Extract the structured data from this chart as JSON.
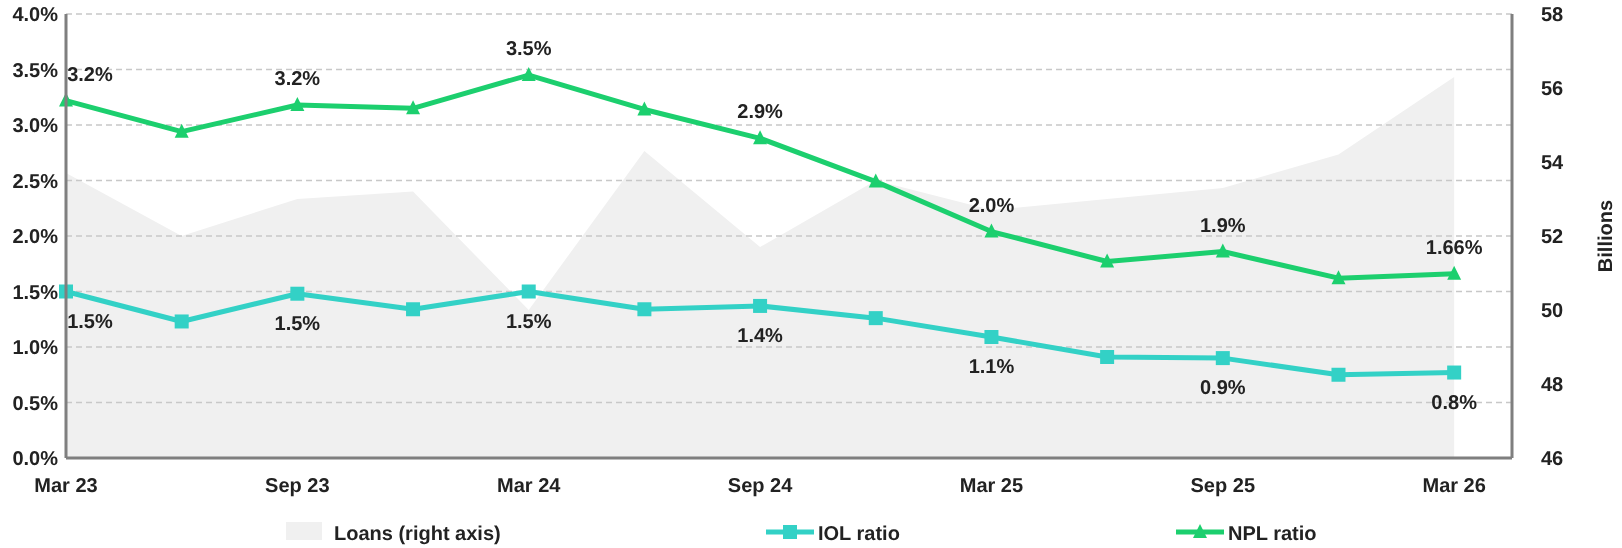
{
  "chart_data": {
    "type": "line",
    "categories": [
      "Mar 23",
      null,
      "Sep 23",
      null,
      "Mar 24",
      null,
      "Sep 24",
      null,
      "Mar 25",
      null,
      "Sep 25",
      null,
      "Mar 26"
    ],
    "series": [
      {
        "name": "Loans (right axis)",
        "type": "area",
        "axis": "y2",
        "color": "#f0f0f0",
        "values": [
          53.7,
          52.0,
          53.0,
          53.2,
          50.0,
          54.3,
          51.7,
          53.5,
          52.7,
          53.0,
          53.3,
          54.2,
          56.3
        ]
      },
      {
        "name": "IOL ratio",
        "color": "#33d1c6",
        "marker": "square",
        "values": [
          1.5,
          1.23,
          1.48,
          1.34,
          1.5,
          1.34,
          1.37,
          1.26,
          1.09,
          0.91,
          0.9,
          0.75,
          0.77
        ],
        "value_labels": [
          "1.5%",
          null,
          "1.5%",
          null,
          "1.5%",
          null,
          "1.4%",
          null,
          "1.1%",
          null,
          "0.9%",
          null,
          "0.8%"
        ]
      },
      {
        "name": "NPL ratio",
        "color": "#1ccf6e",
        "marker": "triangle",
        "values": [
          3.22,
          2.94,
          3.18,
          3.15,
          3.45,
          3.14,
          2.88,
          2.49,
          2.04,
          1.77,
          1.86,
          1.62,
          1.66
        ],
        "value_labels": [
          "3.2%",
          null,
          "3.2%",
          null,
          "3.5%",
          null,
          "2.9%",
          null,
          "2.0%",
          null,
          "1.9%",
          null,
          "1.66%"
        ]
      }
    ],
    "ylim": [
      0,
      4
    ],
    "yticks": [
      {
        "value": 0,
        "label": "0.0%"
      },
      {
        "value": 0.5,
        "label": "0.5%"
      },
      {
        "value": 1,
        "label": "1.0%"
      },
      {
        "value": 1.5,
        "label": "1.5%"
      },
      {
        "value": 2,
        "label": "2.0%"
      },
      {
        "value": 2.5,
        "label": "2.5%"
      },
      {
        "value": 3,
        "label": "3.0%"
      },
      {
        "value": 3.5,
        "label": "3.5%"
      },
      {
        "value": 4,
        "label": "4.0%"
      }
    ],
    "y2lim": [
      46,
      58
    ],
    "y2ticks": [
      46,
      48,
      50,
      52,
      54,
      56,
      58
    ],
    "y2label": "Billions",
    "grid": "y",
    "legend": "bottom"
  }
}
